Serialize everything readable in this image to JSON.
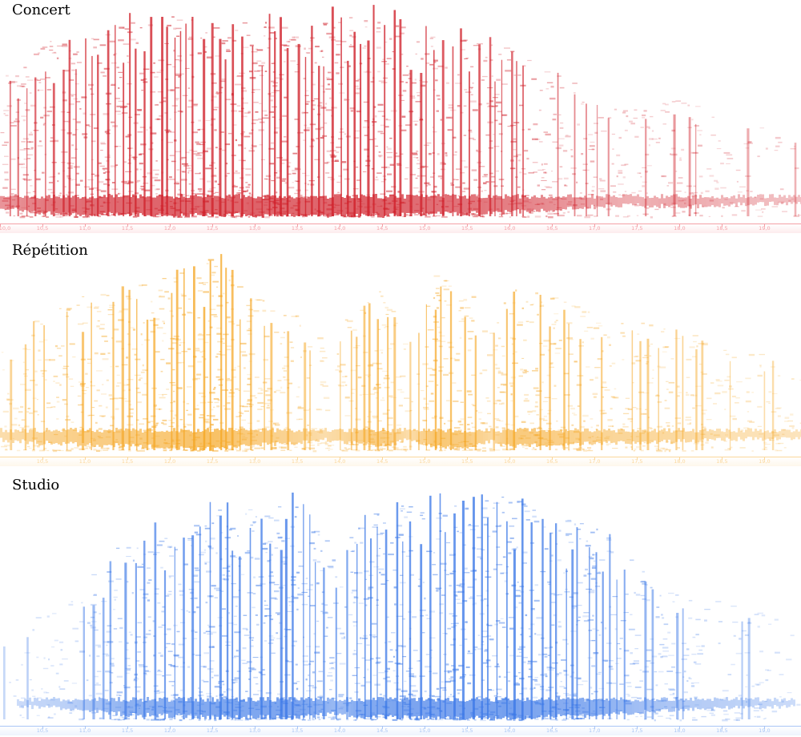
{
  "chart_data": [
    {
      "type": "spectrogram",
      "title": "Concert",
      "color": "#d0202a",
      "axis_color": "#f4a0a6",
      "x_ticks": [
        "10,0",
        "10,5",
        "11,0",
        "11,5",
        "12,0",
        "12,5",
        "13,0",
        "13,5",
        "14,0",
        "14,5",
        "15,0",
        "15,5",
        "16,0",
        "16,5",
        "17,0",
        "17,5",
        "18,0",
        "18,5",
        "19,0"
      ],
      "x_range": [
        10.0,
        19.43
      ],
      "profile": [
        [
          10.0,
          0.55
        ],
        [
          10.2,
          0.6
        ],
        [
          10.5,
          0.8
        ],
        [
          11.0,
          0.9
        ],
        [
          11.5,
          0.95
        ],
        [
          12.0,
          1.0
        ],
        [
          12.5,
          0.95
        ],
        [
          13.0,
          1.0
        ],
        [
          13.5,
          0.95
        ],
        [
          14.0,
          1.0
        ],
        [
          14.5,
          1.0
        ],
        [
          15.0,
          0.9
        ],
        [
          15.5,
          0.85
        ],
        [
          16.0,
          0.75
        ],
        [
          16.5,
          0.6
        ],
        [
          17.0,
          0.4
        ],
        [
          17.5,
          0.3
        ],
        [
          18.0,
          0.4
        ],
        [
          18.5,
          0.25
        ],
        [
          19.0,
          0.2
        ],
        [
          19.43,
          0.15
        ]
      ]
    },
    {
      "type": "spectrogram",
      "title": "Répétition",
      "color": "#f5a623",
      "axis_color": "#fbd79b",
      "x_ticks": [
        "10,5",
        "11,0",
        "11,5",
        "12,0",
        "12,5",
        "13,0",
        "13,5",
        "14,0",
        "14,5",
        "15,0",
        "15,5",
        "16,0",
        "16,5",
        "17,0",
        "17,5",
        "18,0",
        "18,5",
        "19,0"
      ],
      "x_range": [
        10.0,
        19.43
      ],
      "profile": [
        [
          10.0,
          0.35
        ],
        [
          10.5,
          0.55
        ],
        [
          11.0,
          0.7
        ],
        [
          11.5,
          0.75
        ],
        [
          12.0,
          0.85
        ],
        [
          12.5,
          1.0
        ],
        [
          13.0,
          0.7
        ],
        [
          13.5,
          0.55
        ],
        [
          13.8,
          0.35
        ],
        [
          14.2,
          0.6
        ],
        [
          14.5,
          0.75
        ],
        [
          14.8,
          0.35
        ],
        [
          15.1,
          0.85
        ],
        [
          15.5,
          0.75
        ],
        [
          15.8,
          0.45
        ],
        [
          16.0,
          0.8
        ],
        [
          16.5,
          0.7
        ],
        [
          17.0,
          0.55
        ],
        [
          17.5,
          0.5
        ],
        [
          18.0,
          0.45
        ],
        [
          18.5,
          0.3
        ],
        [
          19.0,
          0.25
        ],
        [
          19.43,
          0.2
        ]
      ]
    },
    {
      "type": "spectrogram",
      "title": "Studio",
      "color": "#3b78e7",
      "axis_color": "#a9c6f5",
      "x_ticks": [
        "10,5",
        "11,0",
        "11,5",
        "12,0",
        "12,5",
        "13,0",
        "13,5",
        "14,0",
        "14,5",
        "15,0",
        "15,5",
        "16,0",
        "16,5",
        "17,0",
        "17,5",
        "18,0",
        "18,5",
        "19,0"
      ],
      "x_range": [
        10.0,
        19.43
      ],
      "profile": [
        [
          10.0,
          0.05
        ],
        [
          10.4,
          0.2
        ],
        [
          10.8,
          0.3
        ],
        [
          11.2,
          0.55
        ],
        [
          11.5,
          0.75
        ],
        [
          12.0,
          0.8
        ],
        [
          12.5,
          0.9
        ],
        [
          13.0,
          0.9
        ],
        [
          13.5,
          0.95
        ],
        [
          14.0,
          0.6
        ],
        [
          14.2,
          0.85
        ],
        [
          14.5,
          0.9
        ],
        [
          15.0,
          0.95
        ],
        [
          15.5,
          0.95
        ],
        [
          16.0,
          1.0
        ],
        [
          16.5,
          0.85
        ],
        [
          17.0,
          0.8
        ],
        [
          17.5,
          0.55
        ],
        [
          18.0,
          0.4
        ],
        [
          18.5,
          0.3
        ],
        [
          19.0,
          0.2
        ],
        [
          19.43,
          0.1
        ]
      ]
    }
  ]
}
